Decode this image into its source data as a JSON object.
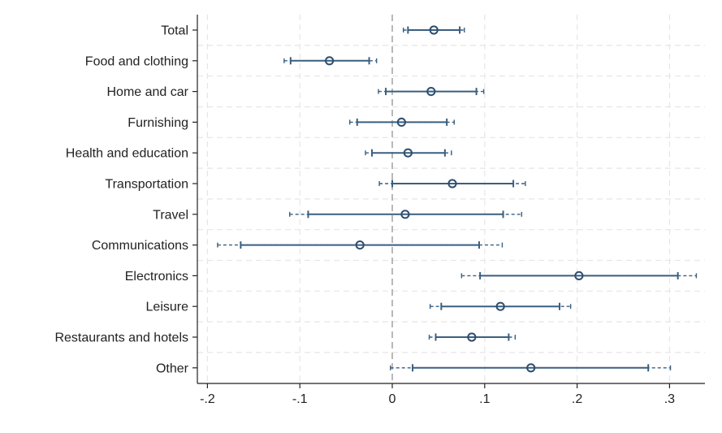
{
  "chart_data": {
    "type": "coefficient-plot",
    "orientation": "horizontal",
    "title": "",
    "xlabel": "",
    "ylabel": "",
    "xlim": [
      -0.21,
      0.33
    ],
    "xticks": [
      -0.2,
      -0.1,
      0,
      0.1,
      0.2,
      0.3
    ],
    "xtick_labels": [
      "-.2",
      "-.1",
      "0",
      ".1",
      ".2",
      ".3"
    ],
    "reference_line": 0,
    "grid": true,
    "legend": "none",
    "colors": {
      "marker": "#2e4e6e",
      "ci": "#3a5f80",
      "grid": "#e6e6e6",
      "reference": "#a6a6a6",
      "axis": "#222222"
    },
    "rows": [
      {
        "category": "Total",
        "estimate": 0.045,
        "ci_inner": [
          0.017,
          0.073
        ],
        "ci_outer": [
          0.012,
          0.078
        ]
      },
      {
        "category": "Food and clothing",
        "estimate": -0.068,
        "ci_inner": [
          -0.11,
          -0.025
        ],
        "ci_outer": [
          -0.117,
          -0.017
        ]
      },
      {
        "category": "Home and car",
        "estimate": 0.042,
        "ci_inner": [
          -0.007,
          0.091
        ],
        "ci_outer": [
          -0.015,
          0.099
        ]
      },
      {
        "category": "Furnishing",
        "estimate": 0.01,
        "ci_inner": [
          -0.038,
          0.059
        ],
        "ci_outer": [
          -0.046,
          0.067
        ]
      },
      {
        "category": "Health and education",
        "estimate": 0.017,
        "ci_inner": [
          -0.022,
          0.057
        ],
        "ci_outer": [
          -0.029,
          0.064
        ]
      },
      {
        "category": "Transportation",
        "estimate": 0.065,
        "ci_inner": [
          0.0,
          0.131
        ],
        "ci_outer": [
          -0.014,
          0.144
        ]
      },
      {
        "category": "Travel",
        "estimate": 0.014,
        "ci_inner": [
          -0.091,
          0.12
        ],
        "ci_outer": [
          -0.111,
          0.14
        ]
      },
      {
        "category": "Communications",
        "estimate": -0.035,
        "ci_inner": [
          -0.164,
          0.094
        ],
        "ci_outer": [
          -0.189,
          0.119
        ]
      },
      {
        "category": "Electronics",
        "estimate": 0.202,
        "ci_inner": [
          0.095,
          0.309
        ],
        "ci_outer": [
          0.075,
          0.329
        ]
      },
      {
        "category": "Leisure",
        "estimate": 0.117,
        "ci_inner": [
          0.053,
          0.181
        ],
        "ci_outer": [
          0.041,
          0.193
        ]
      },
      {
        "category": "Restaurants and hotels",
        "estimate": 0.086,
        "ci_inner": [
          0.047,
          0.126
        ],
        "ci_outer": [
          0.04,
          0.133
        ]
      },
      {
        "category": "Other",
        "estimate": 0.15,
        "ci_inner": [
          0.022,
          0.277
        ],
        "ci_outer": [
          -0.002,
          0.301
        ]
      }
    ]
  }
}
